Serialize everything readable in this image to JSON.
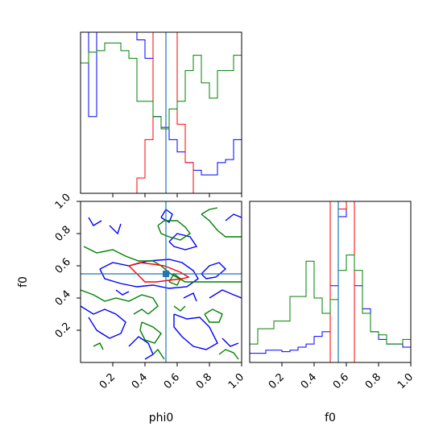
{
  "chart_data": {
    "type": "corner",
    "parameters": [
      "phi0",
      "f0"
    ],
    "colors": {
      "blue": "#0000ff",
      "red": "#ff0000",
      "green": "#008000",
      "truth": "#1f77b4",
      "axis": "#000000"
    },
    "truth": {
      "phi0": 0.53,
      "f0": 0.55
    },
    "xlim": [
      0,
      1
    ],
    "ylim": [
      0,
      1
    ],
    "tick_labels": [
      "0.2",
      "0.4",
      "0.6",
      "0.8",
      "1.0"
    ],
    "tick_values": [
      0.2,
      0.4,
      0.6,
      0.8,
      1.0
    ],
    "phi0_histograms": {
      "bins": [
        0.0,
        0.05,
        0.1,
        0.15,
        0.2,
        0.25,
        0.3,
        0.35,
        0.4,
        0.45,
        0.5,
        0.55,
        0.6,
        0.65,
        0.7,
        0.75,
        0.8,
        0.85,
        0.9,
        0.95,
        1.0
      ],
      "blue": [
        1.05,
        0.5,
        1.2,
        1.25,
        1.25,
        1.2,
        1.1,
        1.0,
        0.88,
        0.5,
        0.43,
        0.35,
        0.27,
        0.2,
        0.15,
        0.12,
        0.12,
        0.2,
        0.22,
        0.35
      ],
      "red": [
        0.0,
        0.0,
        0.0,
        0.0,
        0.0,
        0.0,
        0.0,
        0.1,
        0.35,
        1.3,
        1.4,
        1.3,
        0.45,
        0.2,
        0.0,
        0.0,
        0.0,
        0.0,
        0.0,
        0.0
      ],
      "green": [
        0.85,
        0.92,
        0.93,
        0.98,
        0.98,
        0.93,
        0.88,
        0.6,
        0.6,
        0.5,
        0.42,
        0.55,
        0.6,
        0.8,
        0.9,
        0.72,
        0.62,
        0.8,
        0.8,
        0.9
      ]
    },
    "f0_histograms": {
      "bins": [
        0.0,
        0.05,
        0.1,
        0.15,
        0.2,
        0.25,
        0.3,
        0.35,
        0.4,
        0.45,
        0.5,
        0.55,
        0.6,
        0.65,
        0.7,
        0.75,
        0.8,
        0.85,
        0.9,
        0.95,
        1.0
      ],
      "blue": [
        0.06,
        0.06,
        0.08,
        0.08,
        0.07,
        0.08,
        0.1,
        0.12,
        0.17,
        0.2,
        0.5,
        0.95,
        1.3,
        0.5,
        0.35,
        0.2,
        0.15,
        0.12,
        0.12,
        0.1
      ],
      "red": [
        0.0,
        0.0,
        0.0,
        0.0,
        0.0,
        0.0,
        0.0,
        0.0,
        0.0,
        0.0,
        1.3,
        1.0,
        1.2,
        0.0,
        0.0,
        0.0,
        0.0,
        0.0,
        0.0,
        0.0
      ],
      "green": [
        0.12,
        0.22,
        0.22,
        0.27,
        0.27,
        0.43,
        0.43,
        0.66,
        0.42,
        0.32,
        0.41,
        0.6,
        0.7,
        0.6,
        0.32,
        0.2,
        0.18,
        0.12,
        0.12,
        0.15
      ]
    },
    "contours": {
      "red": [
        [
          [
            0.3,
            0.6
          ],
          [
            0.37,
            0.62
          ],
          [
            0.45,
            0.61
          ],
          [
            0.52,
            0.6
          ],
          [
            0.57,
            0.58
          ],
          [
            0.62,
            0.56
          ],
          [
            0.67,
            0.53
          ],
          [
            0.63,
            0.52
          ],
          [
            0.55,
            0.51
          ],
          [
            0.47,
            0.5
          ],
          [
            0.4,
            0.5
          ],
          [
            0.37,
            0.53
          ],
          [
            0.33,
            0.57
          ],
          [
            0.3,
            0.6
          ]
        ]
      ],
      "blue": [
        [
          [
            0.12,
            0.58
          ],
          [
            0.2,
            0.62
          ],
          [
            0.3,
            0.6
          ],
          [
            0.42,
            0.63
          ],
          [
            0.55,
            0.64
          ],
          [
            0.63,
            0.62
          ],
          [
            0.7,
            0.57
          ],
          [
            0.73,
            0.52
          ],
          [
            0.66,
            0.47
          ],
          [
            0.55,
            0.46
          ],
          [
            0.45,
            0.48
          ],
          [
            0.35,
            0.47
          ],
          [
            0.25,
            0.49
          ],
          [
            0.15,
            0.52
          ],
          [
            0.12,
            0.58
          ]
        ],
        [
          [
            0.05,
            0.9
          ],
          [
            0.08,
            0.85
          ],
          [
            0.13,
            0.88
          ]
        ],
        [
          [
            0.18,
            0.85
          ],
          [
            0.23,
            0.8
          ],
          [
            0.25,
            0.86
          ]
        ],
        [
          [
            0.5,
            0.9
          ],
          [
            0.53,
            0.95
          ],
          [
            0.57,
            0.92
          ],
          [
            0.55,
            0.87
          ],
          [
            0.5,
            0.9
          ]
        ],
        [
          [
            0.55,
            0.75
          ],
          [
            0.6,
            0.8
          ],
          [
            0.68,
            0.78
          ],
          [
            0.72,
            0.72
          ],
          [
            0.65,
            0.7
          ],
          [
            0.58,
            0.72
          ],
          [
            0.55,
            0.75
          ]
        ],
        [
          [
            0.8,
            0.4
          ],
          [
            0.88,
            0.45
          ],
          [
            0.95,
            0.42
          ],
          [
            1.0,
            0.4
          ]
        ],
        [
          [
            0.0,
            0.35
          ],
          [
            0.08,
            0.3
          ],
          [
            0.15,
            0.33
          ],
          [
            0.22,
            0.3
          ],
          [
            0.28,
            0.25
          ],
          [
            0.25,
            0.18
          ],
          [
            0.18,
            0.15
          ],
          [
            0.1,
            0.2
          ],
          [
            0.05,
            0.28
          ]
        ],
        [
          [
            0.3,
            0.1
          ],
          [
            0.36,
            0.16
          ],
          [
            0.42,
            0.12
          ],
          [
            0.45,
            0.05
          ],
          [
            0.4,
            0.02
          ]
        ],
        [
          [
            0.58,
            0.3
          ],
          [
            0.66,
            0.27
          ],
          [
            0.74,
            0.28
          ],
          [
            0.8,
            0.22
          ],
          [
            0.85,
            0.12
          ],
          [
            0.78,
            0.08
          ],
          [
            0.7,
            0.1
          ],
          [
            0.63,
            0.16
          ],
          [
            0.58,
            0.22
          ],
          [
            0.58,
            0.3
          ]
        ],
        [
          [
            0.88,
            0.15
          ],
          [
            0.93,
            0.1
          ],
          [
            0.98,
            0.12
          ]
        ],
        [
          [
            0.75,
            0.55
          ],
          [
            0.8,
            0.6
          ],
          [
            0.86,
            0.62
          ],
          [
            0.9,
            0.58
          ],
          [
            0.84,
            0.53
          ],
          [
            0.78,
            0.52
          ],
          [
            0.75,
            0.55
          ]
        ],
        [
          [
            0.22,
            0.45
          ],
          [
            0.26,
            0.42
          ],
          [
            0.3,
            0.44
          ]
        ],
        [
          [
            0.64,
            0.4
          ],
          [
            0.7,
            0.43
          ],
          [
            0.72,
            0.38
          ]
        ],
        [
          [
            0.9,
            0.88
          ],
          [
            0.95,
            0.92
          ],
          [
            1.0,
            0.9
          ]
        ]
      ],
      "green": [
        [
          [
            0.02,
            0.72
          ],
          [
            0.1,
            0.68
          ],
          [
            0.2,
            0.7
          ],
          [
            0.28,
            0.66
          ],
          [
            0.36,
            0.63
          ],
          [
            0.45,
            0.63
          ],
          [
            0.5,
            0.6
          ],
          [
            0.56,
            0.55
          ],
          [
            0.65,
            0.5
          ],
          [
            0.78,
            0.5
          ],
          [
            0.88,
            0.5
          ],
          [
            1.0,
            0.5
          ]
        ],
        [
          [
            0.0,
            0.45
          ],
          [
            0.08,
            0.42
          ],
          [
            0.15,
            0.38
          ],
          [
            0.22,
            0.4
          ],
          [
            0.3,
            0.38
          ],
          [
            0.38,
            0.42
          ],
          [
            0.45,
            0.4
          ],
          [
            0.48,
            0.35
          ],
          [
            0.42,
            0.3
          ]
        ],
        [
          [
            0.38,
            0.25
          ],
          [
            0.45,
            0.22
          ],
          [
            0.5,
            0.18
          ],
          [
            0.46,
            0.12
          ],
          [
            0.4,
            0.14
          ],
          [
            0.37,
            0.2
          ],
          [
            0.38,
            0.25
          ]
        ],
        [
          [
            0.33,
            0.3
          ],
          [
            0.38,
            0.33
          ],
          [
            0.42,
            0.3
          ]
        ],
        [
          [
            0.45,
            0.05
          ],
          [
            0.48,
            0.08
          ],
          [
            0.52,
            0.02
          ]
        ],
        [
          [
            0.48,
            0.85
          ],
          [
            0.52,
            0.88
          ],
          [
            0.6,
            0.88
          ],
          [
            0.65,
            0.84
          ],
          [
            0.68,
            0.8
          ],
          [
            0.62,
            0.76
          ],
          [
            0.55,
            0.78
          ],
          [
            0.5,
            0.8
          ],
          [
            0.48,
            0.85
          ]
        ],
        [
          [
            0.75,
            0.92
          ],
          [
            0.8,
            0.88
          ],
          [
            0.85,
            0.82
          ],
          [
            0.9,
            0.78
          ],
          [
            1.0,
            0.78
          ]
        ],
        [
          [
            0.75,
            0.92
          ],
          [
            0.8,
            0.95
          ],
          [
            0.85,
            0.96
          ]
        ],
        [
          [
            0.55,
            0.5
          ],
          [
            0.58,
            0.55
          ],
          [
            0.62,
            0.52
          ],
          [
            0.6,
            0.48
          ],
          [
            0.55,
            0.5
          ]
        ],
        [
          [
            0.77,
            0.3
          ],
          [
            0.82,
            0.33
          ],
          [
            0.88,
            0.3
          ],
          [
            0.86,
            0.25
          ],
          [
            0.8,
            0.25
          ],
          [
            0.77,
            0.3
          ]
        ],
        [
          [
            0.86,
            0.05
          ],
          [
            0.9,
            0.08
          ],
          [
            0.95,
            0.06
          ],
          [
            0.98,
            0.02
          ]
        ],
        [
          [
            0.08,
            0.1
          ],
          [
            0.12,
            0.12
          ],
          [
            0.14,
            0.08
          ]
        ],
        [
          [
            0.58,
            0.35
          ],
          [
            0.62,
            0.32
          ],
          [
            0.65,
            0.35
          ]
        ]
      ]
    },
    "xlabel_left": "phi0",
    "xlabel_right": "f0",
    "ylabel_left": "f0"
  }
}
